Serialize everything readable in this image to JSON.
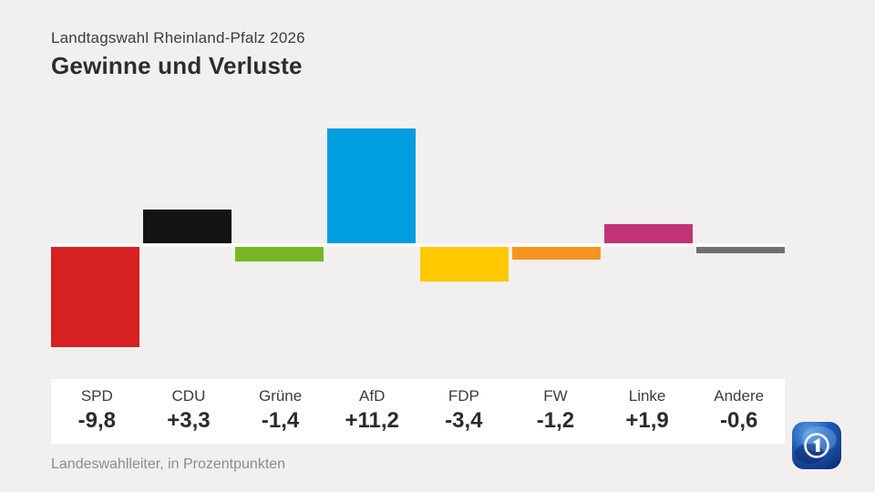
{
  "header": {
    "subtitle": "Landtagswahl Rheinland-Pfalz 2026",
    "title": "Gewinne und Verluste"
  },
  "footer": {
    "source": "Landeswahlleiter, in Prozentpunkten"
  },
  "logo_icon": "ard-das-erste-globe",
  "colors": {
    "background": "#f1f0ee",
    "label_band": "#ffffff",
    "zero_line": "#fbfbfa"
  },
  "chart_data": {
    "type": "bar",
    "title": "Gewinne und Verluste",
    "subtitle": "Landtagswahl Rheinland-Pfalz 2026",
    "source": "Landeswahlleiter, in Prozentpunkten",
    "unit": "Prozentpunkte",
    "categories": [
      "SPD",
      "CDU",
      "Grüne",
      "AfD",
      "FDP",
      "FW",
      "Linke",
      "Andere"
    ],
    "values": [
      -9.8,
      3.3,
      -1.4,
      11.2,
      -3.4,
      -1.2,
      1.9,
      -0.6
    ],
    "value_labels": [
      "-9,8",
      "+3,3",
      "-1,4",
      "+11,2",
      "-3,4",
      "-1,2",
      "+1,9",
      "-0,6"
    ],
    "bar_colors": [
      "#d62021",
      "#141414",
      "#77b725",
      "#009ee0",
      "#ffc801",
      "#f7941e",
      "#c03377",
      "#6f6f6f"
    ],
    "baseline": 0,
    "ylim": [
      -10.5,
      12
    ],
    "grid": false,
    "legend": false,
    "xlabel": "",
    "ylabel": ""
  }
}
